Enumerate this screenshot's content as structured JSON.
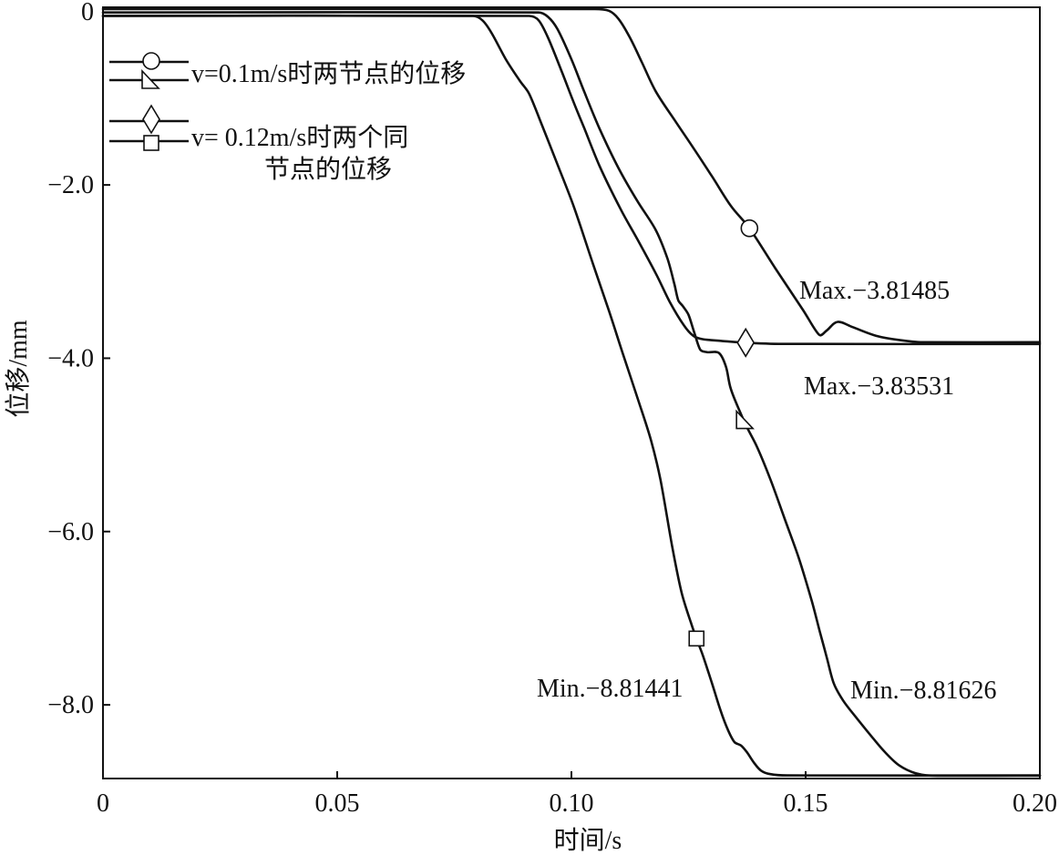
{
  "colors": {
    "line": "#111111",
    "background": "#ffffff",
    "marker_fill": "#ffffff"
  },
  "chart_data": {
    "type": "line",
    "xlabel": "时间/s",
    "ylabel": "位移/mm",
    "xlim": [
      0,
      0.2
    ],
    "ylim": [
      -8.85,
      0.05
    ],
    "grid": false,
    "x_ticks": [
      0,
      0.05,
      0.1,
      0.15,
      0.2
    ],
    "x_tick_labels": [
      "0",
      "0.05",
      "0.10",
      "0.15",
      "0.20"
    ],
    "y_ticks": [
      0,
      -2,
      -4,
      -6,
      -8
    ],
    "y_tick_labels": [
      "0",
      "−2.0",
      "−4.0",
      "−6.0",
      "−8.0"
    ],
    "legend": {
      "placement": "top-left",
      "entries": [
        {
          "lines": [
            "v=0.1m/s时两节点的位移"
          ],
          "markers": [
            "circle",
            "triangle"
          ]
        },
        {
          "lines": [
            "v= 0.12m/s时两个同",
            "节点的位移"
          ],
          "markers": [
            "diamond",
            "square"
          ]
        }
      ]
    },
    "series": [
      {
        "legend_entry": 0,
        "marker": "circle",
        "marker_x": 0.138,
        "points": [
          [
            0,
            0.03
          ],
          [
            0.105,
            0.03
          ],
          [
            0.108,
            0.01
          ],
          [
            0.11,
            -0.08
          ],
          [
            0.1124,
            -0.29
          ],
          [
            0.115,
            -0.58
          ],
          [
            0.118,
            -0.92
          ],
          [
            0.122,
            -1.25
          ],
          [
            0.126,
            -1.57
          ],
          [
            0.13,
            -1.9
          ],
          [
            0.134,
            -2.24
          ],
          [
            0.138,
            -2.5
          ],
          [
            0.1435,
            -2.96
          ],
          [
            0.1494,
            -3.44
          ],
          [
            0.1529,
            -3.73
          ],
          [
            0.1545,
            -3.68
          ],
          [
            0.1568,
            -3.58
          ],
          [
            0.16,
            -3.64
          ],
          [
            0.165,
            -3.74
          ],
          [
            0.17,
            -3.79
          ],
          [
            0.175,
            -3.81485
          ],
          [
            0.2,
            -3.81485
          ]
        ]
      },
      {
        "legend_entry": 0,
        "marker": "triangle",
        "marker_x": 0.1368,
        "points": [
          [
            0,
            -0.01
          ],
          [
            0.093,
            -0.01
          ],
          [
            0.095,
            -0.06
          ],
          [
            0.097,
            -0.2
          ],
          [
            0.1,
            -0.55
          ],
          [
            0.1027,
            -0.92
          ],
          [
            0.106,
            -1.35
          ],
          [
            0.11,
            -1.8
          ],
          [
            0.114,
            -2.18
          ],
          [
            0.118,
            -2.52
          ],
          [
            0.1205,
            -2.85
          ],
          [
            0.122,
            -3.15
          ],
          [
            0.1228,
            -3.33
          ],
          [
            0.1238,
            -3.4
          ],
          [
            0.125,
            -3.5
          ],
          [
            0.1262,
            -3.7
          ],
          [
            0.1275,
            -3.9
          ],
          [
            0.129,
            -3.93
          ],
          [
            0.1315,
            -3.94
          ],
          [
            0.133,
            -4.1
          ],
          [
            0.134,
            -4.35
          ],
          [
            0.136,
            -4.62
          ],
          [
            0.1375,
            -4.8
          ],
          [
            0.1396,
            -5.02
          ],
          [
            0.1425,
            -5.4
          ],
          [
            0.1455,
            -5.85
          ],
          [
            0.1485,
            -6.3
          ],
          [
            0.1513,
            -6.8
          ],
          [
            0.153,
            -7.15
          ],
          [
            0.1545,
            -7.45
          ],
          [
            0.156,
            -7.75
          ],
          [
            0.158,
            -7.95
          ],
          [
            0.161,
            -8.16
          ],
          [
            0.164,
            -8.36
          ],
          [
            0.167,
            -8.55
          ],
          [
            0.17,
            -8.7
          ],
          [
            0.1735,
            -8.79
          ],
          [
            0.177,
            -8.81626
          ],
          [
            0.2,
            -8.81626
          ]
        ]
      },
      {
        "legend_entry": 1,
        "marker": "diamond",
        "marker_x": 0.1372,
        "points": [
          [
            0,
            -0.05
          ],
          [
            0.091,
            -0.05
          ],
          [
            0.093,
            -0.1
          ],
          [
            0.095,
            -0.3
          ],
          [
            0.098,
            -0.7
          ],
          [
            0.1005,
            -1.05
          ],
          [
            0.1027,
            -1.34
          ],
          [
            0.106,
            -1.78
          ],
          [
            0.1105,
            -2.28
          ],
          [
            0.114,
            -2.62
          ],
          [
            0.118,
            -3.02
          ],
          [
            0.121,
            -3.35
          ],
          [
            0.124,
            -3.62
          ],
          [
            0.126,
            -3.74
          ],
          [
            0.128,
            -3.78
          ],
          [
            0.132,
            -3.8
          ],
          [
            0.137,
            -3.82
          ],
          [
            0.145,
            -3.835
          ],
          [
            0.2,
            -3.83531
          ]
        ]
      },
      {
        "legend_entry": 1,
        "marker": "square",
        "marker_x": 0.1267,
        "points": [
          [
            0,
            -0.05
          ],
          [
            0.079,
            -0.05
          ],
          [
            0.081,
            -0.1
          ],
          [
            0.083,
            -0.25
          ],
          [
            0.086,
            -0.55
          ],
          [
            0.089,
            -0.8
          ],
          [
            0.091,
            -0.95
          ],
          [
            0.094,
            -1.35
          ],
          [
            0.097,
            -1.76
          ],
          [
            0.1005,
            -2.25
          ],
          [
            0.1046,
            -2.91
          ],
          [
            0.108,
            -3.45
          ],
          [
            0.111,
            -3.95
          ],
          [
            0.1143,
            -4.49
          ],
          [
            0.117,
            -4.95
          ],
          [
            0.119,
            -5.4
          ],
          [
            0.1215,
            -6.17
          ],
          [
            0.1235,
            -6.7
          ],
          [
            0.1255,
            -7.05
          ],
          [
            0.1268,
            -7.25
          ],
          [
            0.128,
            -7.42
          ],
          [
            0.13,
            -7.75
          ],
          [
            0.1318,
            -8.06
          ],
          [
            0.1335,
            -8.3
          ],
          [
            0.1348,
            -8.43
          ],
          [
            0.1362,
            -8.47
          ],
          [
            0.1375,
            -8.55
          ],
          [
            0.139,
            -8.67
          ],
          [
            0.1405,
            -8.76
          ],
          [
            0.1425,
            -8.8
          ],
          [
            0.146,
            -8.81441
          ],
          [
            0.2,
            -8.81441
          ]
        ]
      }
    ],
    "annotations": [
      {
        "text": "Max.−3.81485",
        "series": 0
      },
      {
        "text": "Max.−3.83531",
        "series": 2
      },
      {
        "text": "Min.−8.81441",
        "series": 3
      },
      {
        "text": "Min.−8.81626",
        "series": 1
      }
    ]
  }
}
